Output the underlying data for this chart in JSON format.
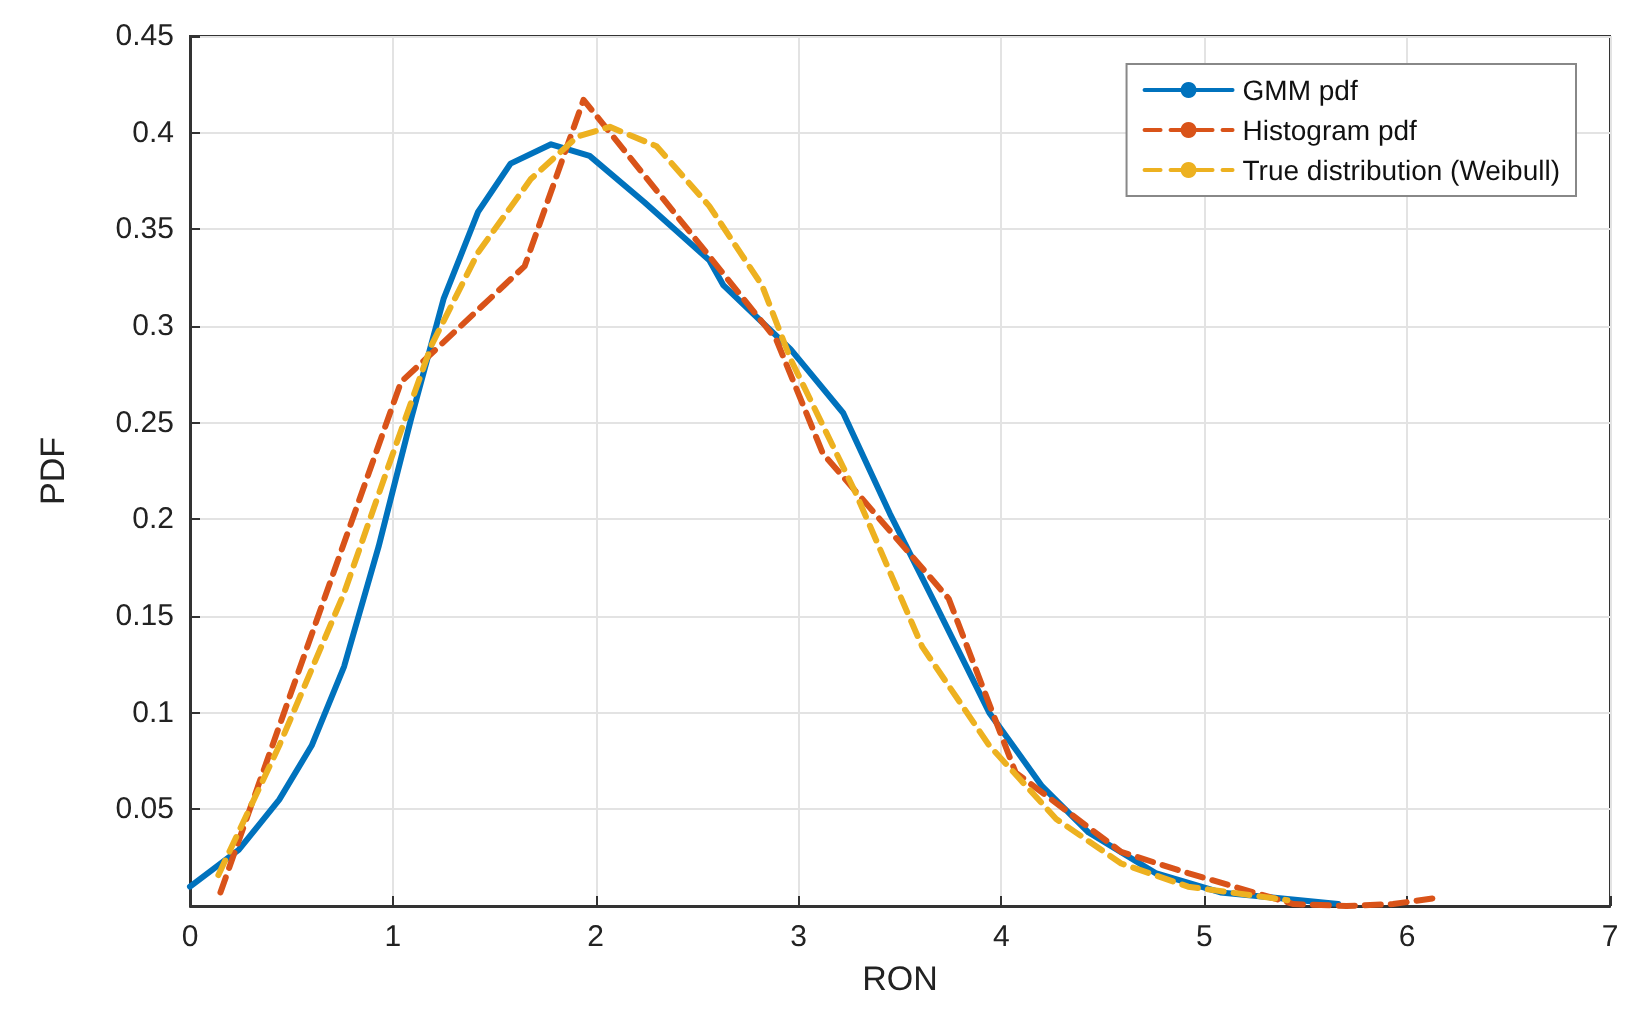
{
  "chart_data": {
    "type": "line",
    "xlabel": "RON",
    "ylabel": "PDF",
    "xlim": [
      0,
      7
    ],
    "xticks": [
      0,
      1,
      2,
      3,
      4,
      5,
      6,
      7
    ],
    "ylim": [
      0,
      0.45
    ],
    "yticks": [
      {
        "value": 0,
        "label": null
      },
      0.05,
      0.1,
      0.15,
      0.2,
      0.25,
      0.3,
      0.35,
      0.4,
      0.45
    ],
    "grid": true,
    "legend": "top right",
    "marker": "none",
    "series": [
      {
        "name": "GMM pdf",
        "color": "#0072bd",
        "line_style": "solid",
        "x": [
          0,
          0.24,
          0.44,
          0.6,
          0.76,
          0.93,
          1.09,
          1.25,
          1.42,
          1.58,
          1.78,
          1.97,
          2.24,
          2.56,
          2.63,
          2.96,
          3.22,
          3.45,
          3.68,
          3.94,
          4.2,
          4.43,
          4.76,
          5.08,
          5.66
        ],
        "values": [
          0.01,
          0.029,
          0.055,
          0.083,
          0.124,
          0.186,
          0.252,
          0.314,
          0.359,
          0.384,
          0.394,
          0.388,
          0.364,
          0.334,
          0.321,
          0.288,
          0.255,
          0.203,
          0.155,
          0.1,
          0.062,
          0.038,
          0.017,
          0.007,
          0.001
        ]
      },
      {
        "name": "Histogram pdf",
        "color": "#d95319",
        "line_style": "dashed",
        "x": [
          0.15,
          1.04,
          1.65,
          1.94,
          2.89,
          3.12,
          3.74,
          4.07,
          4.59,
          4.92,
          5.44,
          5.7,
          5.93,
          6.13
        ],
        "values": [
          0.007,
          0.271,
          0.331,
          0.417,
          0.293,
          0.234,
          0.159,
          0.069,
          0.028,
          0.017,
          0.001,
          0,
          0.001,
          0.004
        ]
      },
      {
        "name": "True distribution (Weibull)",
        "color": "#edb120",
        "line_style": "dashed",
        "x": [
          0.14,
          0.44,
          0.76,
          0.99,
          1.19,
          1.42,
          1.68,
          1.91,
          2.07,
          2.3,
          2.56,
          2.82,
          2.96,
          3.28,
          3.61,
          3.94,
          4.27,
          4.59,
          4.92,
          5.41
        ],
        "values": [
          0.016,
          0.083,
          0.162,
          0.231,
          0.29,
          0.338,
          0.376,
          0.398,
          0.403,
          0.393,
          0.362,
          0.321,
          0.283,
          0.214,
          0.134,
          0.083,
          0.045,
          0.022,
          0.01,
          0.003
        ]
      }
    ]
  }
}
